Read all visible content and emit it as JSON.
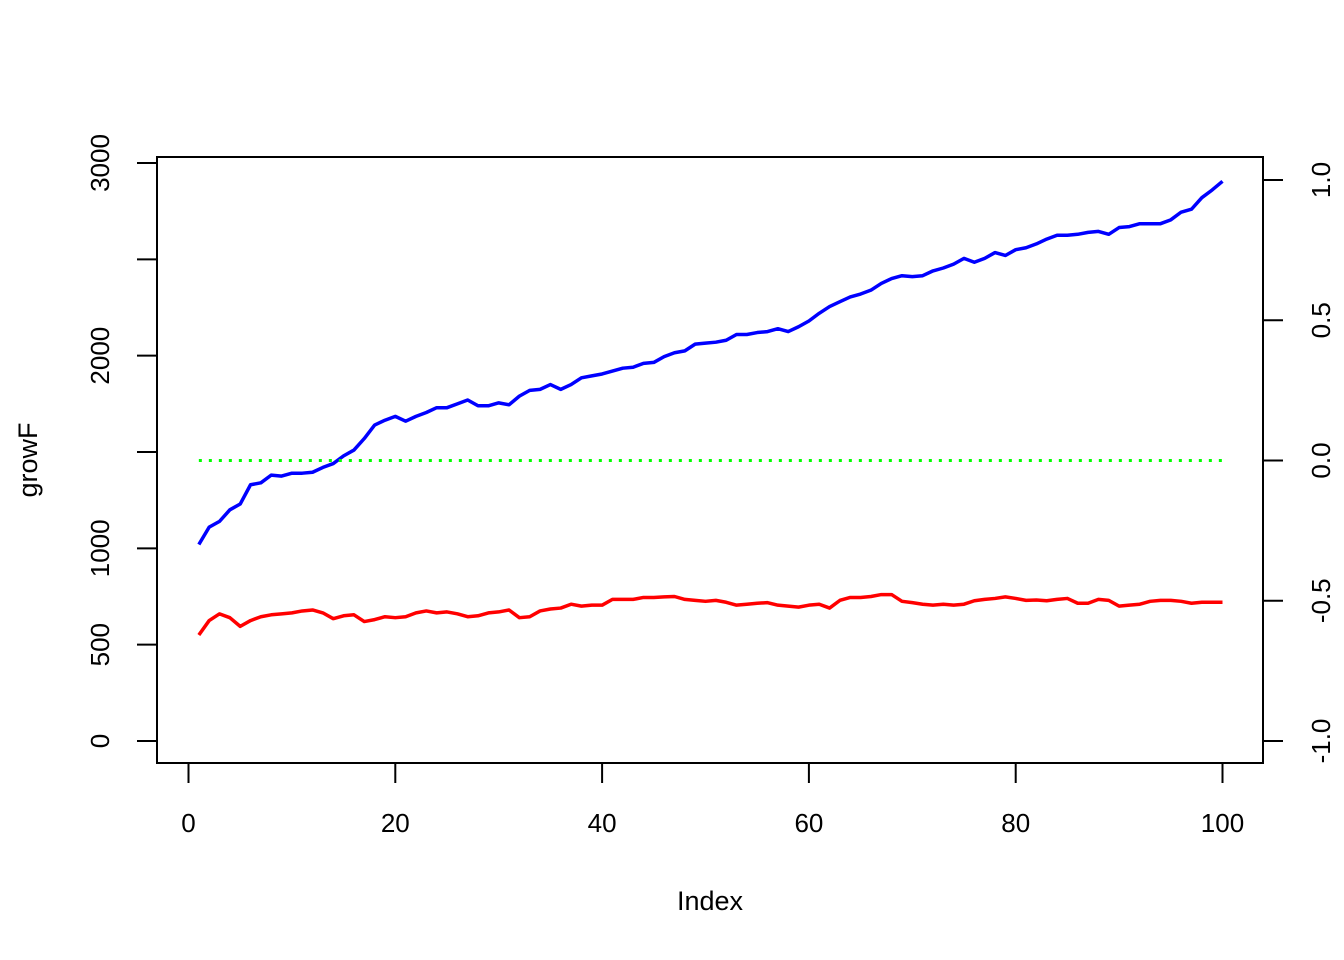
{
  "chart_data": {
    "type": "line",
    "title": "",
    "xlabel": "Index",
    "ylabel": "growF",
    "xlim": [
      1,
      100
    ],
    "ylim": [
      0,
      3000
    ],
    "y2lim": [
      -1,
      1
    ],
    "x_ticks": [
      0,
      20,
      40,
      60,
      80,
      100
    ],
    "y_ticks": [
      0,
      500,
      1000,
      2000,
      3000
    ],
    "y_minor_ticks": [
      1500,
      2500
    ],
    "y2_ticks": [
      -1.0,
      -0.5,
      0.0,
      0.5,
      1.0
    ],
    "x_tick_labels": [
      "0",
      "20",
      "40",
      "60",
      "80",
      "100"
    ],
    "y_tick_labels": [
      "0",
      "500",
      "1000",
      "2000",
      "3000"
    ],
    "y2_tick_labels": [
      "-1.0",
      "-0.5",
      "0.0",
      "0.5",
      "1.0"
    ],
    "grid": false,
    "legend": "none",
    "series": [
      {
        "axis": "left",
        "color": "#0000ff",
        "style": "solid",
        "values": [
          1020,
          1110,
          1140,
          1200,
          1230,
          1330,
          1340,
          1380,
          1375,
          1390,
          1390,
          1395,
          1420,
          1440,
          1480,
          1510,
          1570,
          1640,
          1665,
          1685,
          1660,
          1685,
          1705,
          1730,
          1730,
          1750,
          1770,
          1740,
          1740,
          1755,
          1745,
          1790,
          1820,
          1825,
          1850,
          1825,
          1850,
          1885,
          1895,
          1905,
          1920,
          1935,
          1940,
          1960,
          1965,
          1995,
          2015,
          2025,
          2060,
          2065,
          2070,
          2080,
          2110,
          2110,
          2120,
          2125,
          2140,
          2125,
          2150,
          2180,
          2220,
          2255,
          2280,
          2305,
          2320,
          2340,
          2375,
          2400,
          2415,
          2410,
          2415,
          2440,
          2455,
          2475,
          2505,
          2485,
          2505,
          2535,
          2520,
          2550,
          2560,
          2580,
          2605,
          2625,
          2625,
          2630,
          2640,
          2645,
          2630,
          2665,
          2670,
          2685,
          2685,
          2685,
          2705,
          2745,
          2760,
          2820,
          2860,
          2905
        ]
      },
      {
        "axis": "left",
        "color": "#ff0000",
        "style": "solid",
        "values": [
          550,
          625,
          660,
          640,
          595,
          625,
          645,
          655,
          660,
          665,
          675,
          680,
          665,
          635,
          650,
          655,
          620,
          630,
          645,
          640,
          645,
          665,
          675,
          665,
          670,
          660,
          645,
          650,
          665,
          670,
          680,
          640,
          645,
          675,
          685,
          690,
          710,
          700,
          705,
          705,
          735,
          735,
          735,
          745,
          745,
          748,
          750,
          735,
          730,
          725,
          730,
          720,
          705,
          710,
          715,
          718,
          705,
          700,
          695,
          705,
          710,
          690,
          730,
          745,
          745,
          750,
          760,
          760,
          725,
          718,
          710,
          705,
          710,
          705,
          710,
          728,
          735,
          740,
          748,
          740,
          730,
          732,
          728,
          735,
          740,
          715,
          715,
          735,
          730,
          700,
          705,
          710,
          725,
          730,
          730,
          725,
          715,
          720,
          720,
          720
        ]
      },
      {
        "axis": "right",
        "color": "#00ff00",
        "style": "dotted",
        "values": [
          0,
          0,
          0,
          0,
          0,
          0,
          0,
          0,
          0,
          0,
          0,
          0,
          0,
          0,
          0,
          0,
          0,
          0,
          0,
          0,
          0,
          0,
          0,
          0,
          0,
          0,
          0,
          0,
          0,
          0,
          0,
          0,
          0,
          0,
          0,
          0,
          0,
          0,
          0,
          0,
          0,
          0,
          0,
          0,
          0,
          0,
          0,
          0,
          0,
          0,
          0,
          0,
          0,
          0,
          0,
          0,
          0,
          0,
          0,
          0,
          0,
          0,
          0,
          0,
          0,
          0,
          0,
          0,
          0,
          0,
          0,
          0,
          0,
          0,
          0,
          0,
          0,
          0,
          0,
          0,
          0,
          0,
          0,
          0,
          0,
          0,
          0,
          0,
          0,
          0,
          0,
          0,
          0,
          0,
          0,
          0,
          0,
          0,
          0,
          0
        ]
      }
    ]
  }
}
